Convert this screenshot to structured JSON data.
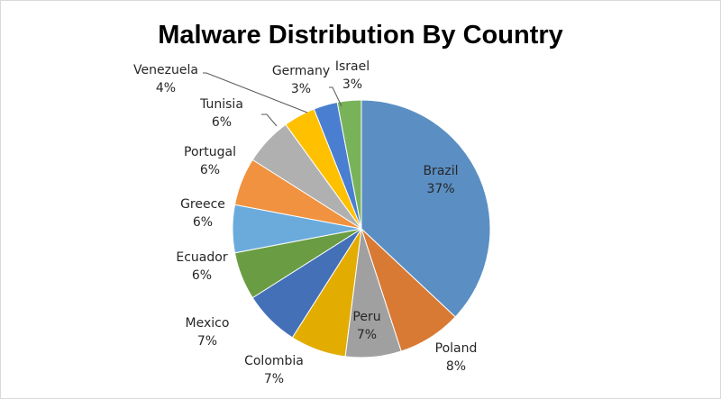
{
  "chart_data": {
    "type": "pie",
    "title": "Malware Distribution By Country",
    "categories": [
      "Brazil",
      "Poland",
      "Peru",
      "Colombia",
      "Mexico",
      "Ecuador",
      "Greece",
      "Portugal",
      "Tunisia",
      "Venezuela",
      "Germany",
      "Israel"
    ],
    "values": [
      37,
      8,
      7,
      7,
      7,
      6,
      6,
      6,
      6,
      4,
      3,
      3
    ],
    "value_labels": [
      "37%",
      "8%",
      "7%",
      "7%",
      "7%",
      "6%",
      "6%",
      "6%",
      "6%",
      "4%",
      "3%",
      "3%"
    ],
    "colors": [
      "#5b8fc3",
      "#d97a34",
      "#a0a0a0",
      "#e2ac00",
      "#4470b8",
      "#6a9d43",
      "#6aabdc",
      "#f0923f",
      "#b0b0b0",
      "#ffc000",
      "#4a7ed0",
      "#78b35a"
    ]
  }
}
